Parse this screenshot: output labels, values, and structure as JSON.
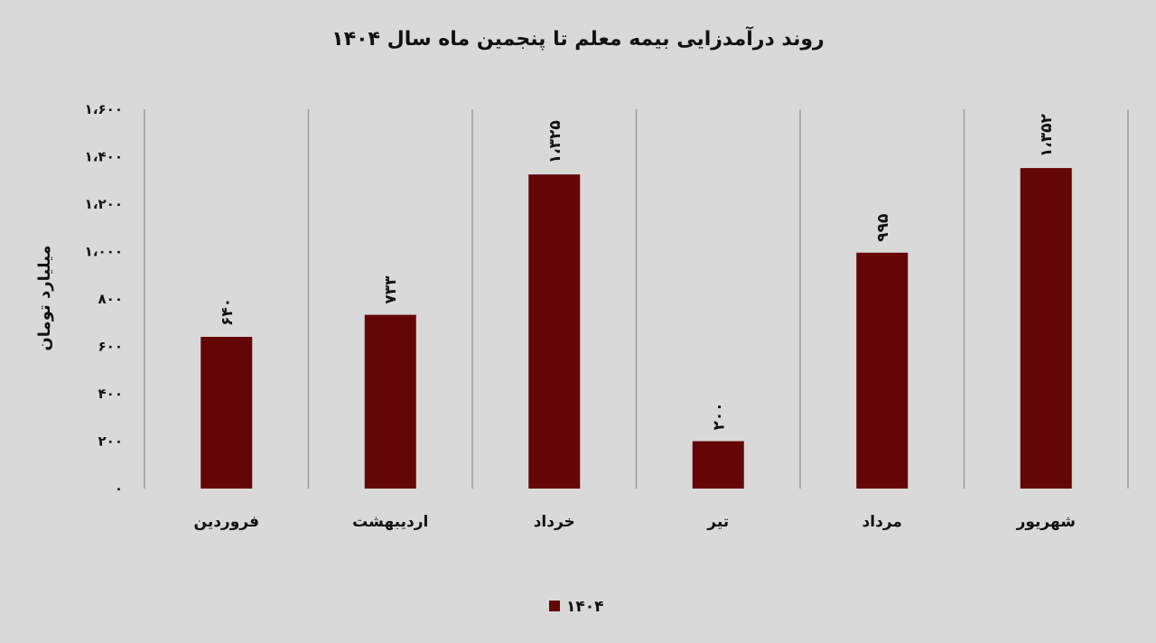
{
  "chart_data": {
    "type": "bar",
    "title": "روند درآمدزایی بیمه معلم تا پنجمین ماه سال ۱۴۰۴",
    "ylabel": "میلیارد تومان",
    "xlabel": "",
    "categories": [
      "فروردین",
      "اردیبهشت",
      "خرداد",
      "تیر",
      "مرداد",
      "شهریور"
    ],
    "series": [
      {
        "name": "۱۴۰۴",
        "values": [
          640,
          733,
          1325,
          200,
          995,
          1352
        ],
        "value_labels": [
          "۶۴۰",
          "۷۳۳",
          "۱،۳۲۵",
          "۲۰۰",
          "۹۹۵",
          "۱،۳۵۲"
        ],
        "color": "#650606"
      }
    ],
    "ylim": [
      0,
      1600
    ],
    "yticks": [
      0,
      200,
      400,
      600,
      800,
      1000,
      1200,
      1400,
      1600
    ],
    "ytick_labels": [
      "۰",
      "۲۰۰",
      "۴۰۰",
      "۶۰۰",
      "۸۰۰",
      "۱،۰۰۰",
      "۱،۲۰۰",
      "۱،۴۰۰",
      "۱،۶۰۰"
    ],
    "grid": "vertical separators",
    "legend_position": "bottom",
    "background": "#d9d9d9"
  }
}
